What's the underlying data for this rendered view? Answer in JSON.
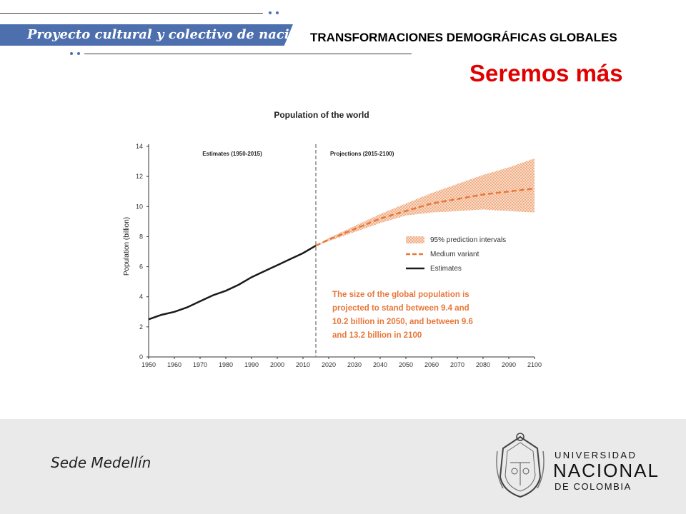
{
  "header": {
    "banner_text": "Proyecto cultural y colectivo de nación",
    "title": "TRANSFORMACIONES DEMOGRÁFICAS GLOBALES",
    "subtitle": "Seremos más"
  },
  "colors": {
    "banner": "#4d6fae",
    "subtitle": "#e00000",
    "projection": "#e8773a",
    "estimates": "#1a1a1a"
  },
  "chart_data": {
    "type": "line",
    "title": "Population of the world",
    "ylabel": "Population (billion)",
    "xlabel": "",
    "xlim": [
      1950,
      2100
    ],
    "ylim": [
      0,
      14
    ],
    "x_ticks": [
      1950,
      1960,
      1970,
      1980,
      1990,
      2000,
      2010,
      2020,
      2030,
      2040,
      2050,
      2060,
      2070,
      2080,
      2090,
      2100
    ],
    "y_ticks": [
      0,
      2,
      4,
      6,
      8,
      10,
      12,
      14
    ],
    "divider_x": 2015,
    "section_labels": [
      "Estimates (1950-2015)",
      "Projections (2015-2100)"
    ],
    "series": [
      {
        "name": "Estimates",
        "style": "solid",
        "x": [
          1950,
          1955,
          1960,
          1965,
          1970,
          1975,
          1980,
          1985,
          1990,
          1995,
          2000,
          2005,
          2010,
          2015
        ],
        "y": [
          2.5,
          2.8,
          3.0,
          3.3,
          3.7,
          4.1,
          4.4,
          4.8,
          5.3,
          5.7,
          6.1,
          6.5,
          6.9,
          7.4
        ]
      },
      {
        "name": "Medium variant",
        "style": "dashed",
        "x": [
          2015,
          2020,
          2030,
          2040,
          2050,
          2060,
          2070,
          2080,
          2090,
          2100
        ],
        "y": [
          7.4,
          7.8,
          8.5,
          9.2,
          9.7,
          10.2,
          10.5,
          10.8,
          11.0,
          11.2
        ]
      },
      {
        "name": "95% prediction intervals",
        "style": "band",
        "x": [
          2015,
          2020,
          2030,
          2040,
          2050,
          2060,
          2070,
          2080,
          2090,
          2100
        ],
        "lower": [
          7.4,
          7.7,
          8.3,
          8.9,
          9.4,
          9.6,
          9.7,
          9.8,
          9.7,
          9.6
        ],
        "upper": [
          7.4,
          7.9,
          8.7,
          9.5,
          10.2,
          10.9,
          11.5,
          12.1,
          12.6,
          13.2
        ]
      }
    ],
    "legend": [
      "95% prediction intervals",
      "Medium variant",
      "Estimates"
    ],
    "annotation": [
      "The size of the global population is",
      "projected to stand between 9.4 and",
      "10.2 billion in 2050, and between 9.6",
      "and 13.2 billion in 2100"
    ],
    "grid": false
  },
  "footer": {
    "sede": "Sede Medellín",
    "university": [
      "UNIVERSIDAD",
      "NACIONAL",
      "DE COLOMBIA"
    ]
  }
}
